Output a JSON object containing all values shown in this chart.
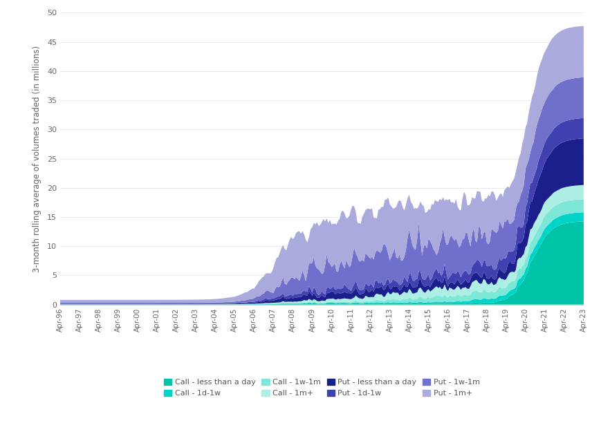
{
  "ylabel": "3-month rolling average of volumes traded (in millions)",
  "ylim": [
    0,
    50
  ],
  "yticks": [
    0,
    5,
    10,
    15,
    20,
    25,
    30,
    35,
    40,
    45,
    50
  ],
  "colors": {
    "call_less_day": "#00C4A7",
    "call_1d_1w": "#00D4C8",
    "call_1w_1m": "#7DE8D8",
    "call_1m_plus": "#AEEEE5",
    "put_less_day": "#1A1F8C",
    "put_1d_1w": "#4040B0",
    "put_1w_1m": "#7070CC",
    "put_1m_plus": "#AAAADD"
  },
  "legend_labels": [
    "Call - less than a day",
    "Call - 1d-1w",
    "Call - 1w-1m",
    "Call - 1m+",
    "Put - less than a day",
    "Put - 1d-1w",
    "Put - 1w-1m",
    "Put - 1m+"
  ],
  "background_color": "#ffffff",
  "grid_color": "#e8e8e8"
}
